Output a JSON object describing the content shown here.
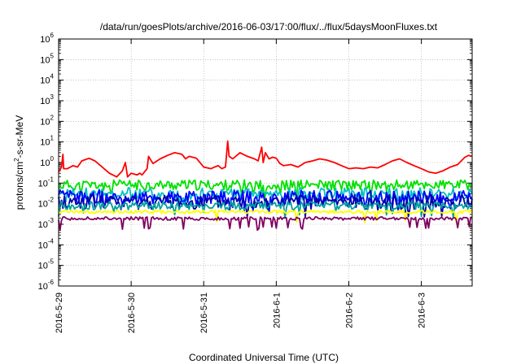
{
  "chart_data": {
    "type": "line",
    "title": "/data/run/goesPlots/archive/2016-06-03/17:00/flux/../flux/5daysMoonFluxes.txt",
    "xlabel": "Coordinated Universal Time (UTC)",
    "ylabel": {
      "pre": "protons/cm",
      "sup": "2",
      "post": "-s-sr-MeV"
    },
    "y_scale": "log",
    "ylim": [
      1e-06,
      1000000.0
    ],
    "y_ticks": [
      {
        "value": 1e-06,
        "base": "10",
        "exp": "-6"
      },
      {
        "value": 1e-05,
        "base": "10",
        "exp": "-5"
      },
      {
        "value": 0.0001,
        "base": "10",
        "exp": "-4"
      },
      {
        "value": 0.001,
        "base": "10",
        "exp": "-3"
      },
      {
        "value": 0.01,
        "base": "10",
        "exp": "-2"
      },
      {
        "value": 0.1,
        "base": "10",
        "exp": "-1"
      },
      {
        "value": 1,
        "base": "10",
        "exp": "0"
      },
      {
        "value": 10.0,
        "base": "10",
        "exp": "1"
      },
      {
        "value": 100.0,
        "base": "10",
        "exp": "2"
      },
      {
        "value": 1000.0,
        "base": "10",
        "exp": "3"
      },
      {
        "value": 10000.0,
        "base": "10",
        "exp": "4"
      },
      {
        "value": 100000.0,
        "base": "10",
        "exp": "5"
      },
      {
        "value": 1000000.0,
        "base": "10",
        "exp": "6"
      }
    ],
    "xlim": [
      "2016-05-29",
      "2016-06-03 17:00"
    ],
    "x_ticks": [
      {
        "value": 0,
        "label": "2016-5-29"
      },
      {
        "value": 1,
        "label": "2016-5-30"
      },
      {
        "value": 2,
        "label": "2016-5-31"
      },
      {
        "value": 3,
        "label": "2016-6-1"
      },
      {
        "value": 4,
        "label": "2016-6-2"
      },
      {
        "value": 5,
        "label": "2016-6-3"
      }
    ],
    "grid": true,
    "series": [
      {
        "color": "#ff0000",
        "values": [
          [
            0.0,
            0.35
          ],
          [
            0.04,
            0.6
          ],
          [
            0.06,
            2.5
          ],
          [
            0.07,
            0.5
          ],
          [
            0.12,
            0.5
          ],
          [
            0.2,
            0.7
          ],
          [
            0.26,
            0.6
          ],
          [
            0.32,
            1.2
          ],
          [
            0.42,
            1.6
          ],
          [
            0.5,
            1.2
          ],
          [
            0.6,
            0.6
          ],
          [
            0.7,
            0.3
          ],
          [
            0.8,
            0.2
          ],
          [
            0.88,
            0.4
          ],
          [
            0.92,
            1.0
          ],
          [
            0.95,
            0.2
          ],
          [
            1.0,
            0.3
          ],
          [
            1.08,
            0.25
          ],
          [
            1.12,
            0.3
          ],
          [
            1.15,
            0.25
          ],
          [
            1.22,
            0.5
          ],
          [
            1.24,
            2.0
          ],
          [
            1.26,
            1.5
          ],
          [
            1.3,
            0.9
          ],
          [
            1.4,
            1.5
          ],
          [
            1.5,
            2.2
          ],
          [
            1.6,
            3.0
          ],
          [
            1.7,
            2.5
          ],
          [
            1.75,
            1.5
          ],
          [
            1.8,
            2.0
          ],
          [
            1.9,
            1.6
          ],
          [
            2.0,
            0.6
          ],
          [
            2.1,
            0.5
          ],
          [
            2.15,
            0.6
          ],
          [
            2.2,
            0.7
          ],
          [
            2.25,
            0.5
          ],
          [
            2.3,
            0.6
          ],
          [
            2.33,
            11.0
          ],
          [
            2.35,
            2.0
          ],
          [
            2.4,
            1.5
          ],
          [
            2.5,
            3.0
          ],
          [
            2.6,
            2.0
          ],
          [
            2.7,
            1.5
          ],
          [
            2.75,
            1.2
          ],
          [
            2.8,
            5.5
          ],
          [
            2.82,
            1.0
          ],
          [
            2.85,
            3.0
          ],
          [
            2.9,
            1.5
          ],
          [
            2.95,
            1.8
          ],
          [
            3.0,
            1.6
          ],
          [
            3.05,
            0.9
          ],
          [
            3.1,
            0.7
          ],
          [
            3.2,
            0.8
          ],
          [
            3.3,
            0.6
          ],
          [
            3.4,
            1.0
          ],
          [
            3.5,
            1.2
          ],
          [
            3.6,
            1.5
          ],
          [
            3.7,
            1.3
          ],
          [
            3.8,
            1.0
          ],
          [
            3.9,
            0.7
          ],
          [
            4.0,
            0.5
          ],
          [
            4.1,
            0.55
          ],
          [
            4.2,
            0.5
          ],
          [
            4.3,
            0.6
          ],
          [
            4.4,
            0.55
          ],
          [
            4.5,
            0.8
          ],
          [
            4.6,
            1.2
          ],
          [
            4.7,
            1.5
          ],
          [
            4.8,
            1.0
          ],
          [
            4.9,
            0.7
          ],
          [
            5.0,
            0.5
          ],
          [
            5.1,
            0.35
          ],
          [
            5.2,
            0.3
          ],
          [
            5.3,
            0.4
          ],
          [
            5.4,
            0.6
          ],
          [
            5.5,
            0.8
          ],
          [
            5.55,
            1.2
          ],
          [
            5.6,
            1.8
          ],
          [
            5.65,
            2.2
          ],
          [
            5.7,
            2.0
          ]
        ]
      },
      {
        "color": "#00e000",
        "base": 0.08,
        "amp": 0.25,
        "spikes": [],
        "seed": 11
      },
      {
        "color": "#00c0c0",
        "base": 0.03,
        "amp": 0.3,
        "spikes": [],
        "seed": 23
      },
      {
        "color": "#0000ff",
        "base": 0.02,
        "amp": 0.35,
        "spikes": [],
        "seed": 37
      },
      {
        "color": "#0000aa",
        "base": 0.012,
        "amp": 0.35,
        "spikes": [],
        "seed": 41
      },
      {
        "color": "#00a0a0",
        "base": 0.008,
        "amp": 0.2,
        "spikes": [],
        "seed": 53
      },
      {
        "color": "#ffff00",
        "base": 0.004,
        "amp": 0.08,
        "spikes": [],
        "seed": 61
      },
      {
        "color": "#800060",
        "base": 0.0019,
        "amp": 0.08,
        "spikes": [
          1.25,
          2.75,
          3.35,
          5.1
        ],
        "seed": 71
      }
    ]
  }
}
